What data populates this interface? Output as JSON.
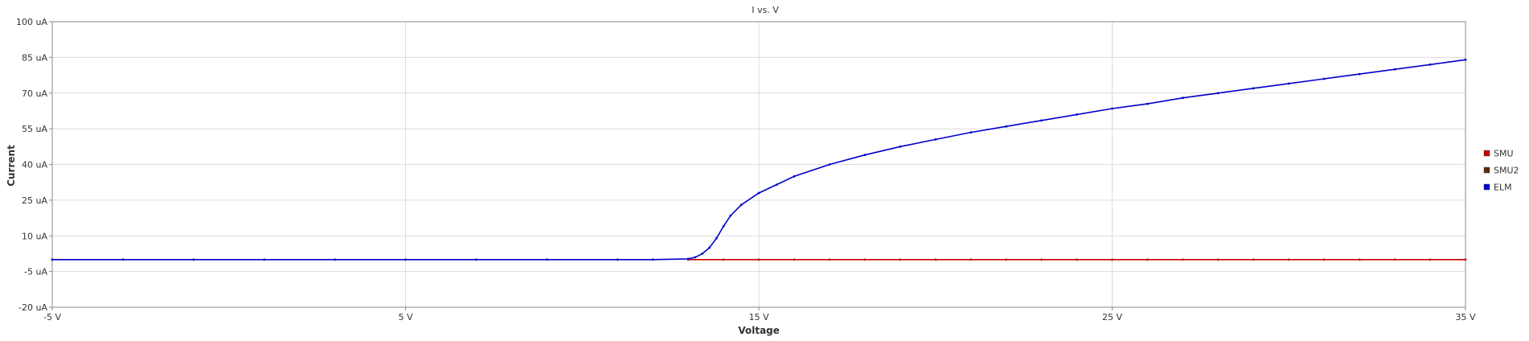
{
  "chart_data": {
    "type": "line",
    "title": "I vs. V",
    "xlabel": "Voltage",
    "ylabel": "Current",
    "xlim": [
      -5,
      35
    ],
    "ylim": [
      -20,
      100
    ],
    "x_ticks": [
      {
        "value": -5,
        "label": "-5 V"
      },
      {
        "value": 5,
        "label": "5 V"
      },
      {
        "value": 15,
        "label": "15 V"
      },
      {
        "value": 25,
        "label": "25 V"
      },
      {
        "value": 35,
        "label": "35 V"
      }
    ],
    "y_ticks": [
      {
        "value": -20,
        "label": "-20 uA"
      },
      {
        "value": -5,
        "label": "-5 uA"
      },
      {
        "value": 10,
        "label": "10 uA"
      },
      {
        "value": 25,
        "label": "25 uA"
      },
      {
        "value": 40,
        "label": "40 uA"
      },
      {
        "value": 55,
        "label": "55 uA"
      },
      {
        "value": 70,
        "label": "70 uA"
      },
      {
        "value": 85,
        "label": "85 uA"
      },
      {
        "value": 100,
        "label": "100 uA"
      }
    ],
    "grid": true,
    "legend_position": "right",
    "series": [
      {
        "name": "SMU",
        "color": "#cc0000",
        "x": [
          13,
          14,
          15,
          16,
          17,
          18,
          19,
          20,
          21,
          22,
          23,
          24,
          25,
          26,
          27,
          28,
          29,
          30,
          31,
          32,
          33,
          34,
          35
        ],
        "y": [
          0,
          0,
          0,
          0,
          0,
          0,
          0,
          0,
          0,
          0,
          0,
          0,
          0,
          0,
          0,
          0,
          0,
          0,
          0,
          0,
          0,
          0,
          0
        ]
      },
      {
        "name": "SMU2",
        "color": "#5a2a0a",
        "x": [],
        "y": []
      },
      {
        "name": "ELM",
        "color": "#0000cc",
        "x": [
          -5,
          -3,
          -1,
          1,
          3,
          5,
          7,
          9,
          11,
          12,
          13,
          13.2,
          13.4,
          13.6,
          13.8,
          14,
          14.2,
          14.5,
          15,
          15.5,
          16,
          17,
          18,
          19,
          20,
          21,
          22,
          23,
          24,
          25,
          26,
          27,
          28,
          29,
          30,
          31,
          32,
          33,
          34,
          35
        ],
        "y": [
          0,
          0,
          0,
          0,
          0,
          0,
          0,
          0,
          0,
          0,
          0.3,
          1,
          2.5,
          5,
          9,
          14,
          18.5,
          23,
          28,
          31.5,
          35,
          40,
          44,
          47.5,
          50.5,
          53.5,
          56,
          58.5,
          61,
          63.5,
          65.5,
          68,
          70,
          72,
          74,
          76,
          78,
          80,
          82,
          84
        ]
      }
    ]
  }
}
